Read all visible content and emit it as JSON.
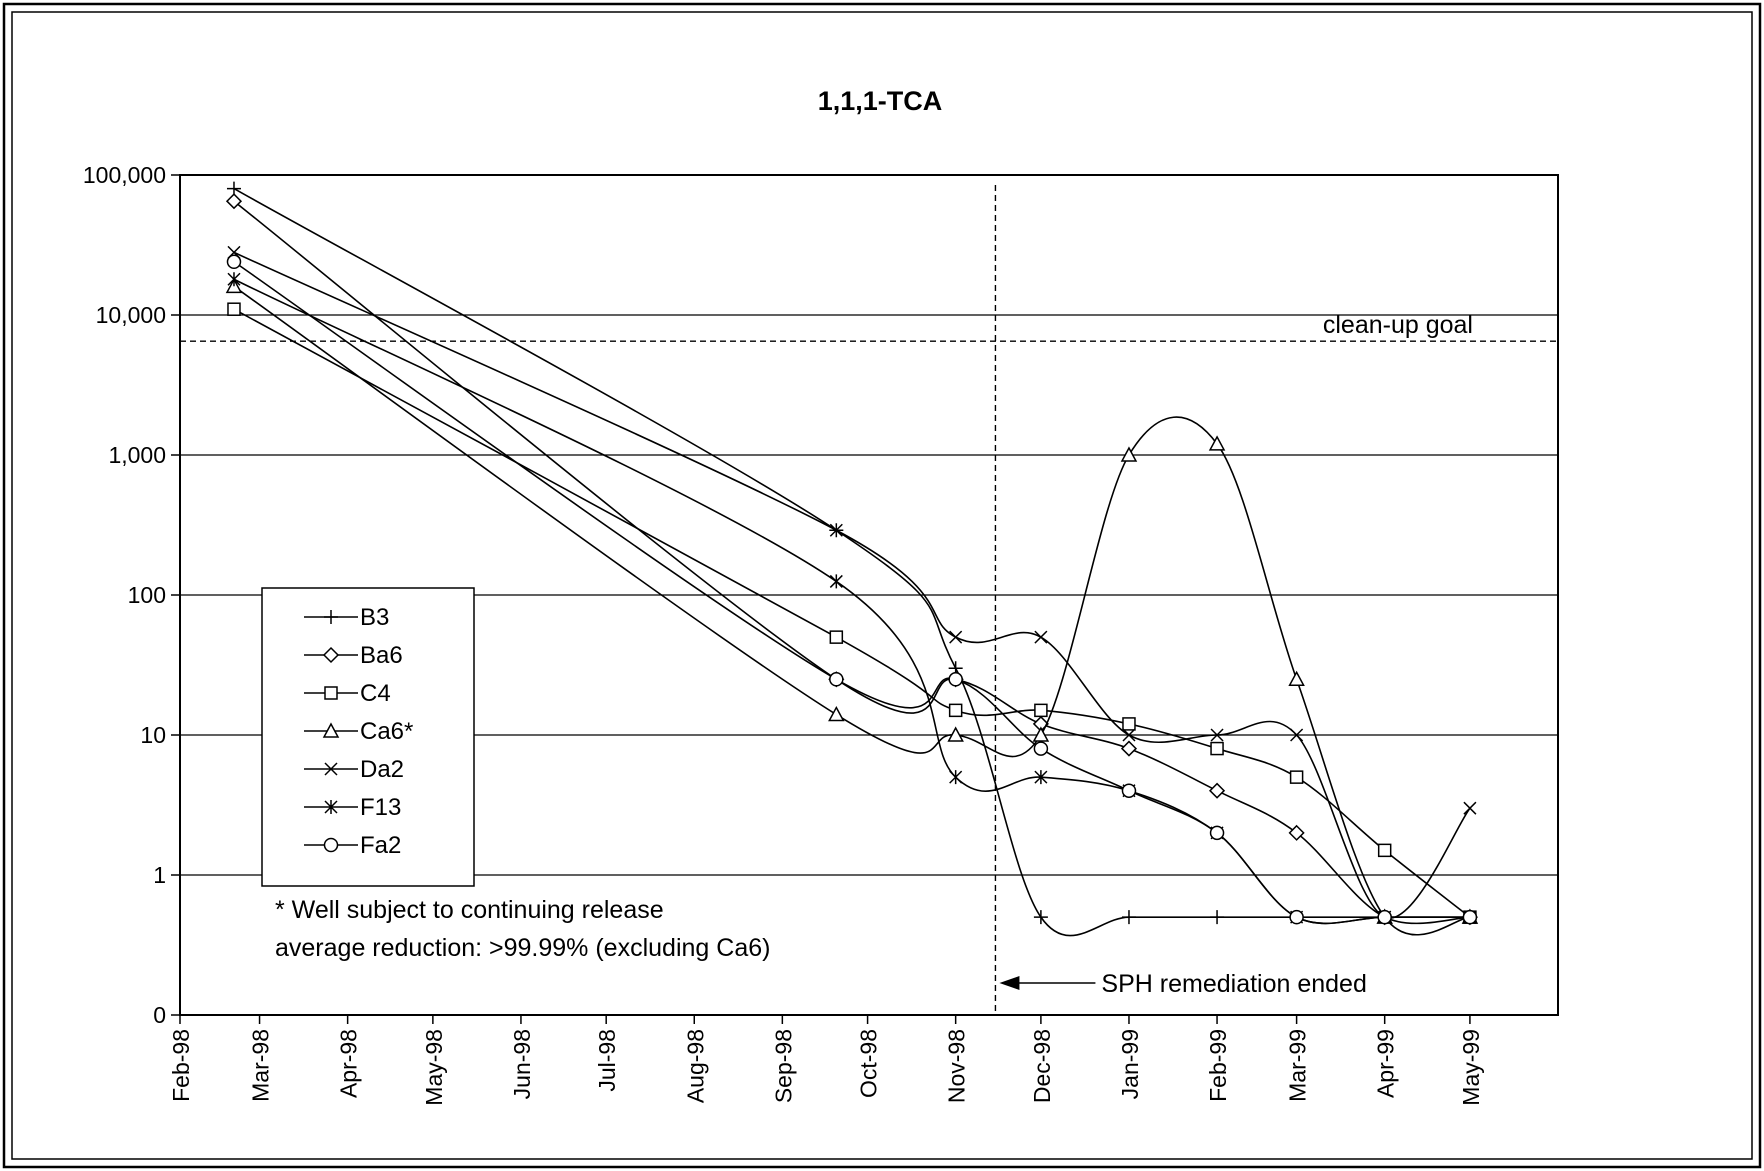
{
  "chart_data": {
    "type": "line",
    "title": "1,1,1-TCA",
    "xlabel": "",
    "ylabel": "",
    "y_scale": "log",
    "ylim": [
      0.1,
      100000
    ],
    "y_ticks": [
      {
        "value": 0.1,
        "label": "0"
      },
      {
        "value": 1,
        "label": "1"
      },
      {
        "value": 10,
        "label": "10"
      },
      {
        "value": 100,
        "label": "100"
      },
      {
        "value": 1000,
        "label": "1,000"
      },
      {
        "value": 10000,
        "label": "10,000"
      },
      {
        "value": 100000,
        "label": "100,000"
      }
    ],
    "x_range": [
      "1998-02-01",
      "1999-06-01"
    ],
    "x_ticks": [
      {
        "date": "1998-02-01",
        "label": "Feb-98"
      },
      {
        "date": "1998-03-01",
        "label": "Mar-98"
      },
      {
        "date": "1998-04-01",
        "label": "Apr-98"
      },
      {
        "date": "1998-05-01",
        "label": "May-98"
      },
      {
        "date": "1998-06-01",
        "label": "Jun-98"
      },
      {
        "date": "1998-07-01",
        "label": "Jul-98"
      },
      {
        "date": "1998-08-01",
        "label": "Aug-98"
      },
      {
        "date": "1998-09-01",
        "label": "Sep-98"
      },
      {
        "date": "1998-10-01",
        "label": "Oct-98"
      },
      {
        "date": "1998-11-01",
        "label": "Nov-98"
      },
      {
        "date": "1998-12-01",
        "label": "Dec-98"
      },
      {
        "date": "1999-01-01",
        "label": "Jan-99"
      },
      {
        "date": "1999-02-01",
        "label": "Feb-99"
      },
      {
        "date": "1999-03-01",
        "label": "Mar-99"
      },
      {
        "date": "1999-04-01",
        "label": "Apr-99"
      },
      {
        "date": "1999-05-01",
        "label": "May-99"
      }
    ],
    "grid": "horizontal",
    "legend_position": "left",
    "series": [
      {
        "name": "B3",
        "marker": "plus",
        "points": [
          [
            "1998-02-20",
            80000
          ],
          [
            "1998-09-20",
            290
          ],
          [
            "1998-11-01",
            30
          ],
          [
            "1998-12-01",
            0.5
          ],
          [
            "1999-01-01",
            0.5
          ],
          [
            "1999-02-01",
            0.5
          ],
          [
            "1999-03-01",
            0.5
          ],
          [
            "1999-04-01",
            0.5
          ],
          [
            "1999-05-01",
            0.5
          ]
        ]
      },
      {
        "name": "Ba6",
        "marker": "diamond",
        "points": [
          [
            "1998-02-20",
            65000
          ],
          [
            "1998-09-20",
            25
          ],
          [
            "1998-11-01",
            25
          ],
          [
            "1998-12-01",
            12
          ],
          [
            "1999-01-01",
            8
          ],
          [
            "1999-02-01",
            4
          ],
          [
            "1999-03-01",
            2
          ],
          [
            "1999-04-01",
            0.5
          ],
          [
            "1999-05-01",
            0.5
          ]
        ]
      },
      {
        "name": "C4",
        "marker": "square",
        "points": [
          [
            "1998-02-20",
            11000
          ],
          [
            "1998-09-20",
            50
          ],
          [
            "1998-11-01",
            15
          ],
          [
            "1998-12-01",
            15
          ],
          [
            "1999-01-01",
            12
          ],
          [
            "1999-02-01",
            8
          ],
          [
            "1999-03-01",
            5
          ],
          [
            "1999-04-01",
            1.5
          ],
          [
            "1999-05-01",
            0.5
          ]
        ]
      },
      {
        "name": "Ca6*",
        "marker": "triangle",
        "points": [
          [
            "1998-02-20",
            16000
          ],
          [
            "1998-09-20",
            14
          ],
          [
            "1998-11-01",
            10
          ],
          [
            "1998-12-01",
            10
          ],
          [
            "1999-01-01",
            1000
          ],
          [
            "1999-02-01",
            1200
          ],
          [
            "1999-03-01",
            25
          ],
          [
            "1999-04-01",
            0.5
          ],
          [
            "1999-05-01",
            0.5
          ]
        ]
      },
      {
        "name": "Da2",
        "marker": "x",
        "points": [
          [
            "1998-02-20",
            28000
          ],
          [
            "1998-09-20",
            290
          ],
          [
            "1998-11-01",
            50
          ],
          [
            "1998-12-01",
            50
          ],
          [
            "1999-01-01",
            10
          ],
          [
            "1999-02-01",
            10
          ],
          [
            "1999-03-01",
            10
          ],
          [
            "1999-04-01",
            0.5
          ],
          [
            "1999-05-01",
            3
          ]
        ]
      },
      {
        "name": "F13",
        "marker": "asterisk",
        "points": [
          [
            "1998-02-20",
            18000
          ],
          [
            "1998-09-20",
            125
          ],
          [
            "1998-11-01",
            5
          ],
          [
            "1998-12-01",
            5
          ],
          [
            "1999-01-01",
            4
          ],
          [
            "1999-02-01",
            2
          ],
          [
            "1999-03-01",
            0.5
          ],
          [
            "1999-04-01",
            0.5
          ],
          [
            "1999-05-01",
            0.5
          ]
        ]
      },
      {
        "name": "Fa2",
        "marker": "circle",
        "points": [
          [
            "1998-02-20",
            24000
          ],
          [
            "1998-09-20",
            25
          ],
          [
            "1998-11-01",
            25
          ],
          [
            "1998-12-01",
            8
          ],
          [
            "1999-01-01",
            4
          ],
          [
            "1999-02-01",
            2
          ],
          [
            "1999-03-01",
            0.5
          ],
          [
            "1999-04-01",
            0.5
          ],
          [
            "1999-05-01",
            0.5
          ]
        ]
      }
    ],
    "reference_lines": [
      {
        "axis": "y",
        "value": 6500,
        "label": "clean-up goal"
      },
      {
        "axis": "x",
        "date": "1998-11-15",
        "label": "SPH remediation ended"
      }
    ],
    "annotations": [
      "* Well subject to continuing release",
      "average reduction: >99.99% (excluding Ca6)"
    ]
  }
}
